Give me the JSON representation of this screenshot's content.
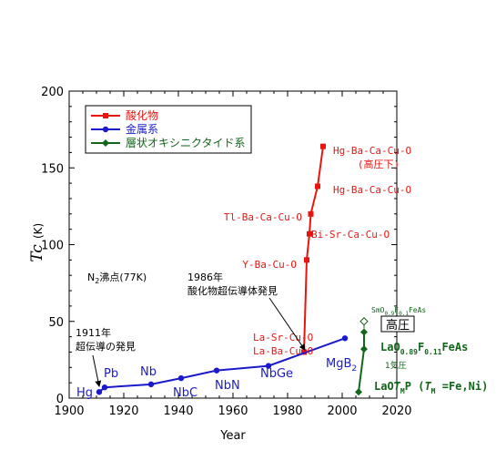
{
  "chart_data": {
    "type": "line",
    "xlabel": "Year",
    "ylabel": "Tc",
    "ylabel_unit": "(K)",
    "xlim": [
      1900,
      2020
    ],
    "ylim": [
      0,
      200
    ],
    "xticks": [
      "1900",
      "1920",
      "1940",
      "1960",
      "1980",
      "2000",
      "2020"
    ],
    "yticks": [
      "0",
      "50",
      "100",
      "150",
      "200"
    ],
    "legend_position": "top-left",
    "series": [
      {
        "name": "酸化物",
        "color": "#e8140f",
        "x": [
          1986,
          1987,
          1988,
          1988.5,
          1991,
          1993
        ],
        "y": [
          30,
          90,
          107,
          120,
          138,
          164
        ],
        "labels": [
          "La-Sr-Cu-O\nLa-Ba-Cu-O",
          "Y-Ba-Cu-O",
          "Bi-Sr-Ca-Cu-O",
          "Tl-Ba-Ca-Cu-O",
          "Hg-Ba-Ca-Cu-O",
          "Hg-Ba-Ca-Cu-O\n(高圧下)"
        ]
      },
      {
        "name": "金属系",
        "color": "#1a1acc",
        "x": [
          1911,
          1913,
          1930,
          1941,
          1954,
          1973,
          2001
        ],
        "y": [
          4,
          7,
          9,
          13,
          18,
          21,
          39
        ],
        "labels": [
          "Hg",
          "Pb",
          "Nb",
          "NbC",
          "NbN",
          "NbGe",
          "MgB2"
        ]
      },
      {
        "name": "層状オキシニクタイド系",
        "color": "#11661a",
        "x": [
          2006,
          2008,
          2008,
          2008
        ],
        "y": [
          4,
          32,
          43,
          50
        ],
        "labels": [
          "LaOTMP (TM=Fe,Ni)",
          "LaO0.89F0.11FeAs",
          "",
          "SmO0.9F0.1FeAs"
        ]
      }
    ],
    "annotations": {
      "n2": {
        "prefix": "N",
        "sub": "2",
        "suffix": "沸点(77K)"
      },
      "discovery_1911": [
        "1911年",
        "超伝導の発見"
      ],
      "discovery_1986": [
        "1986年",
        "酸化物超伝導体発見"
      ],
      "pressure_box": "高圧",
      "pressure_1": "1気圧",
      "la_of": {
        "a": "LaO",
        "s1": "0.89",
        "b": "F",
        "s2": "0.11",
        "c": "FeAs"
      },
      "la_tm": {
        "a": "LaO",
        "t": "T",
        "ts": "M",
        "b": "P (",
        "t2": "T",
        "ts2": "M",
        "c": " =Fe,Ni)"
      },
      "sm": {
        "a": "SmO",
        "s1": "0.9",
        "b": "F",
        "s2": "0.1",
        "c": "FeAs"
      }
    }
  }
}
